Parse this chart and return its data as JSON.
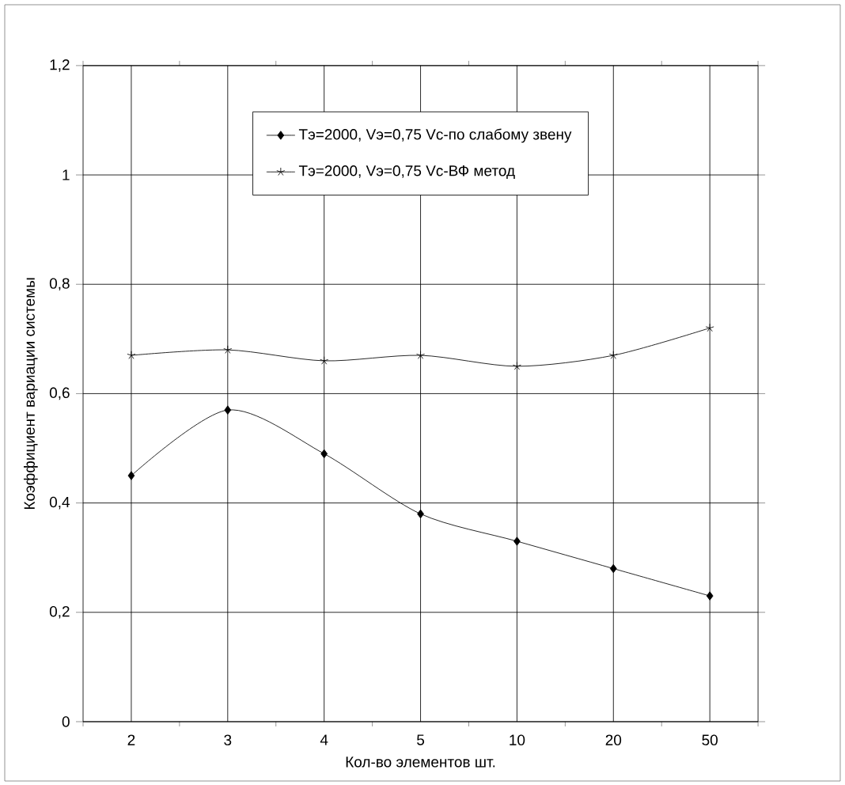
{
  "chart_data": {
    "type": "line",
    "xlabel": "Кол-во элементов шт.",
    "ylabel": "Коэффициент вариации системы",
    "categories": [
      "2",
      "3",
      "4",
      "5",
      "10",
      "20",
      "50"
    ],
    "series": [
      {
        "name": "Тэ=2000, Vэ=0,75 Vс-по слабому звену",
        "color": "#000000",
        "marker": "diamond",
        "values": [
          0.45,
          0.57,
          0.49,
          0.38,
          0.33,
          0.28,
          0.23
        ]
      },
      {
        "name": "Тэ=2000, Vэ=0,75 Vс-ВФ метод",
        "color": "#000000",
        "marker": "cross",
        "values": [
          0.67,
          0.68,
          0.66,
          0.67,
          0.65,
          0.67,
          0.72
        ]
      }
    ],
    "ylim": [
      0,
      1.2
    ],
    "yticks": [
      {
        "value": 0,
        "label": "0"
      },
      {
        "value": 0.2,
        "label": "0,2"
      },
      {
        "value": 0.4,
        "label": "0,4"
      },
      {
        "value": 0.6,
        "label": "0,6"
      },
      {
        "value": 0.8,
        "label": "0,8"
      },
      {
        "value": 1,
        "label": "1"
      },
      {
        "value": 1.2,
        "label": "1,2"
      }
    ],
    "grid": true,
    "legend": "top",
    "line_style": "solid"
  }
}
